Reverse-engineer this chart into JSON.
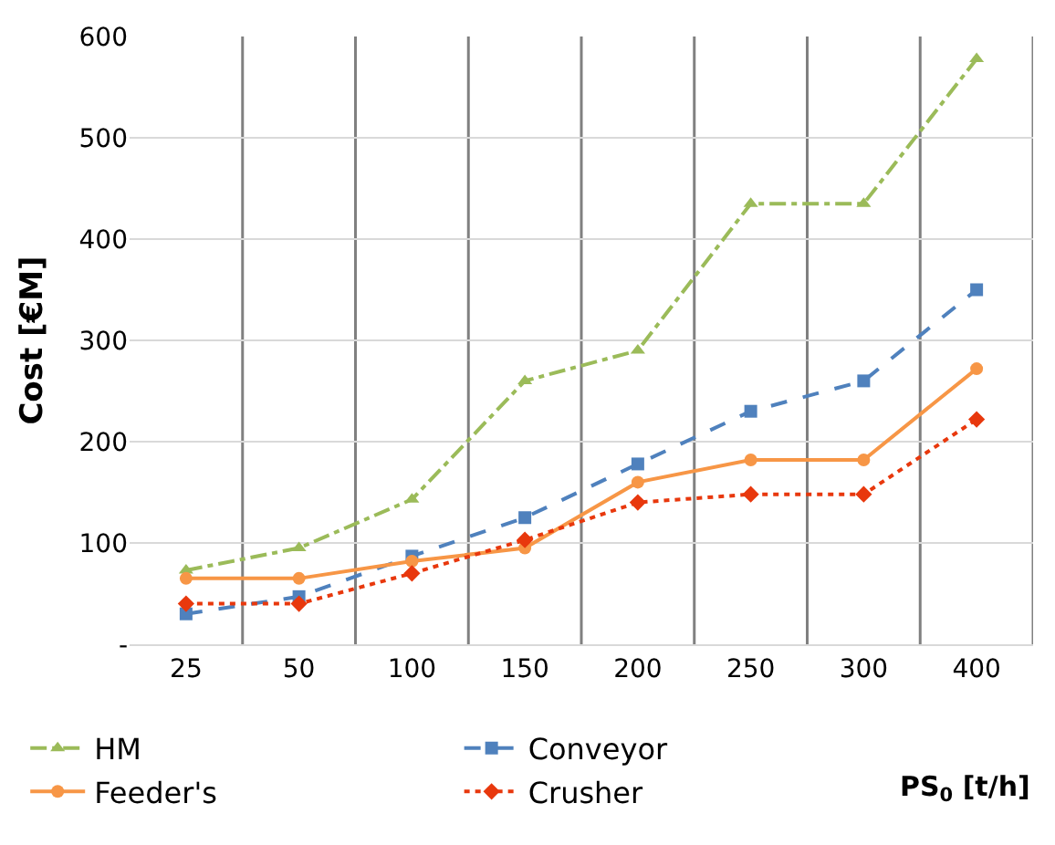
{
  "chart_data": {
    "type": "line",
    "xlabel": "PS$_{0}$ [t/h]",
    "ylabel": "Cost [€M]",
    "categories": [
      "25",
      "50",
      "100",
      "150",
      "200",
      "250",
      "300",
      "400"
    ],
    "series": [
      {
        "name": "HM",
        "color": "#9bbb59",
        "values": [
          73,
          95,
          143,
          260,
          290,
          435,
          435,
          578
        ],
        "marker": "triangle",
        "line_style": "dashdot"
      },
      {
        "name": "Conveyor",
        "color": "#4f81bd",
        "values": [
          30,
          47,
          87,
          125,
          178,
          230,
          260,
          350
        ],
        "marker": "square",
        "line_style": "dashed"
      },
      {
        "name": "Feeder's",
        "color": "#f79646",
        "values": [
          65,
          65,
          82,
          95,
          160,
          182,
          182,
          272
        ],
        "marker": "circle",
        "line_style": "solid"
      },
      {
        "name": "Crusher",
        "color": "#e8380d",
        "values": [
          40,
          40,
          70,
          103,
          140,
          148,
          148,
          222
        ],
        "marker": "diamond",
        "line_style": "dotted"
      }
    ],
    "ylim": [
      0,
      600
    ],
    "yticks": [
      {
        "value": 0,
        "label": "-"
      },
      100,
      200,
      300,
      400,
      500,
      600
    ],
    "grid": true,
    "legend": "bottom"
  }
}
